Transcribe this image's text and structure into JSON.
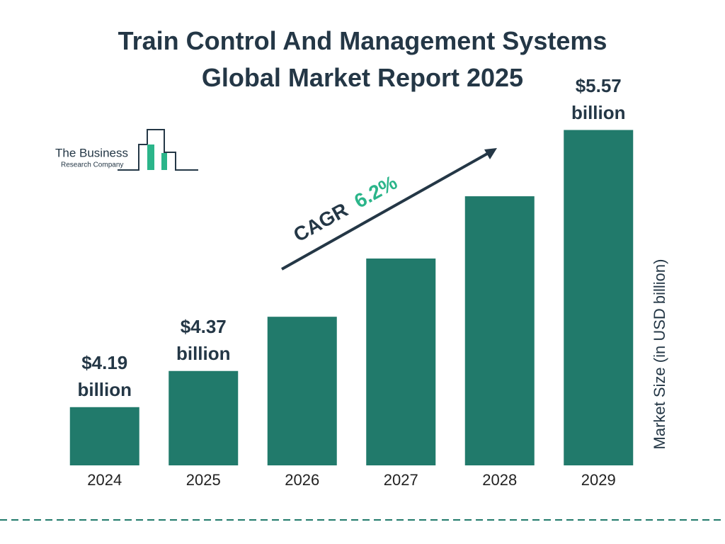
{
  "chart_data": {
    "type": "bar",
    "title": "Train Control And Management Systems Global Market Report 2025",
    "categories": [
      "2024",
      "2025",
      "2026",
      "2027",
      "2028",
      "2029"
    ],
    "values": [
      4.19,
      4.37,
      4.64,
      4.93,
      5.24,
      5.57
    ],
    "value_labels": [
      "$4.19 billion",
      "$4.37 billion",
      null,
      null,
      null,
      "$5.57 billion"
    ],
    "color": "#217a6b",
    "ylim": [
      3.9,
      5.6
    ],
    "y_axis_label": "Market Size (in USD billion)",
    "annotation": {
      "label": "CAGR",
      "value": "6.2%"
    },
    "logo": {
      "line1": "The Business",
      "line2": "Research Company"
    }
  }
}
